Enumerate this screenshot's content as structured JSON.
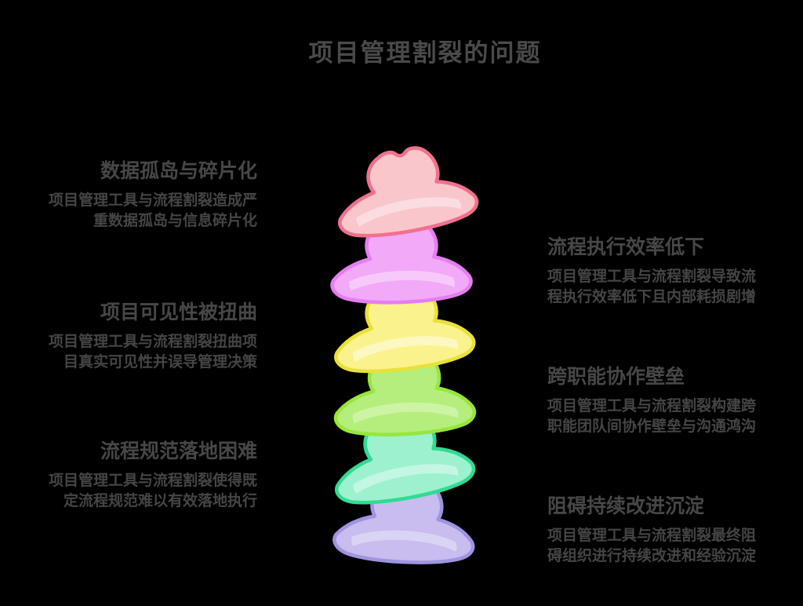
{
  "page": {
    "title": "项目管理割裂的问题",
    "background_color": "#000000",
    "text_color": "#4a4a4a"
  },
  "left_items": [
    {
      "title": "数据孤岛与碎片化",
      "body": "项目管理工具与流程割裂造成严重数据孤岛与信息碎片化"
    },
    {
      "title": "项目可见性被扭曲",
      "body": "项目管理工具与流程割裂扭曲项目真实可见性并误导管理决策"
    },
    {
      "title": "流程规范落地困难",
      "body": "项目管理工具与流程割裂使得既定流程规范难以有效落地执行"
    }
  ],
  "right_items": [
    {
      "title": "流程执行效率低下",
      "body": "项目管理工具与流程割裂导致流程执行效率低下且内部耗损剧增"
    },
    {
      "title": "跨职能协作壁垒",
      "body": "项目管理工具与流程割裂构建跨职能团队间协作壁垒与沟通鸿沟"
    },
    {
      "title": "阻碍持续改进沉淀",
      "body": "项目管理工具与流程割裂最终阻碍组织进行持续改进和经验沉淀"
    }
  ],
  "hats": [
    {
      "name": "pink-hat",
      "fill": "#f9c6cc",
      "stroke": "#f0718d",
      "highlight": "#fbdce0"
    },
    {
      "name": "magenta-hat",
      "fill": "#f1a9f8",
      "stroke": "#e77df2",
      "highlight": "#f7c9fb"
    },
    {
      "name": "yellow-hat",
      "fill": "#faf28c",
      "stroke": "#e9e138",
      "highlight": "#fcf8c0"
    },
    {
      "name": "green-hat",
      "fill": "#b5ee7d",
      "stroke": "#96e73a",
      "highlight": "#cdf4a5"
    },
    {
      "name": "teal-hat",
      "fill": "#9df1cf",
      "stroke": "#31db93",
      "highlight": "#c4f6e4"
    },
    {
      "name": "lavender-hat",
      "fill": "#c9bcee",
      "stroke": "#9e95e1",
      "highlight": "#dad4f4"
    }
  ]
}
